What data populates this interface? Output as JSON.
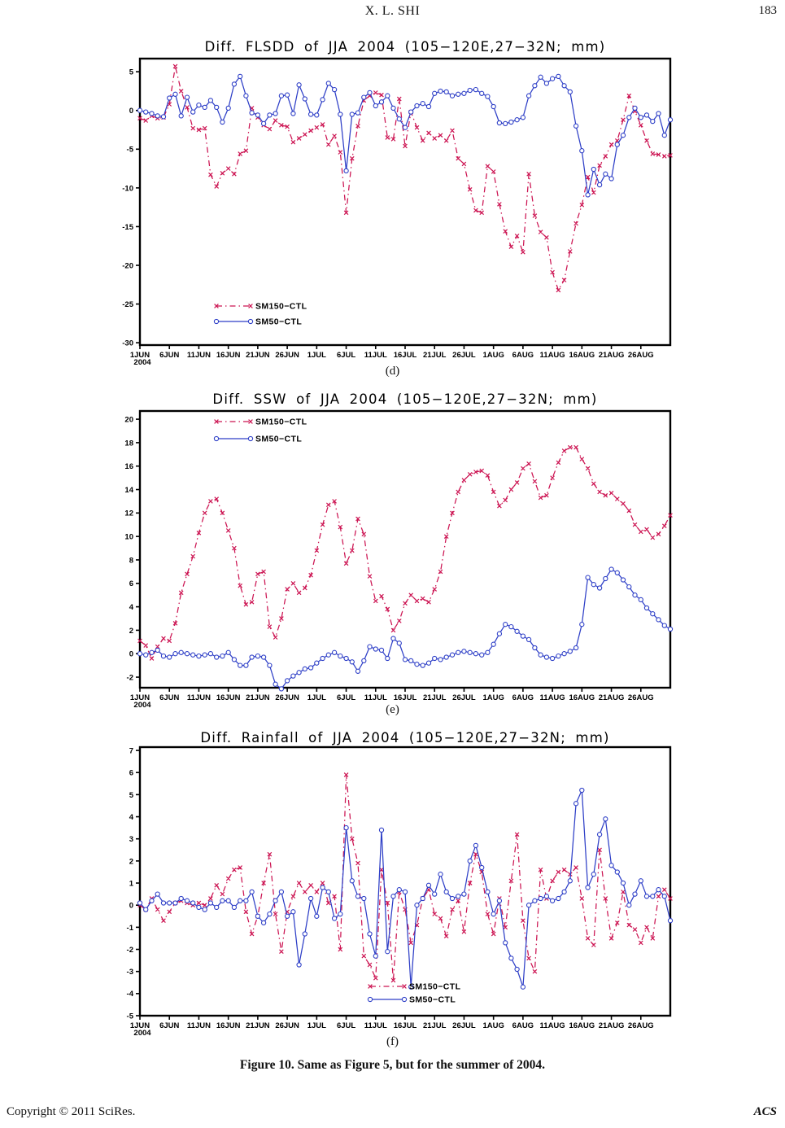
{
  "header": {
    "title": "X. L. SHI",
    "page_number": "183"
  },
  "caption": {
    "text": "Figure 10. Same as Figure 5, but for the summer of 2004."
  },
  "footer": {
    "left": "Copyright © 2011 SciRes.",
    "right": "ACS"
  },
  "accent_colors": {
    "sm150": "#cc1452",
    "sm50": "#2e3fc7",
    "axis": "#000000"
  },
  "chart_data": [
    {
      "type": "line",
      "panel_label": "(d)",
      "title": "Diff. FLSDD of JJA 2004 (105−120E,27−32N; mm)",
      "xlabel": "",
      "ylabel": "",
      "x_axis_year": "2004",
      "x_ticks": [
        "1JUN",
        "6JUN",
        "11JUN",
        "16JUN",
        "21JUN",
        "26JUN",
        "1JUL",
        "6JUL",
        "11JUL",
        "16JUL",
        "21JUL",
        "26JUL",
        "1AUG",
        "6AUG",
        "11AUG",
        "16AUG",
        "21AUG",
        "26AUG"
      ],
      "y_ticks": [
        5,
        0,
        -5,
        -10,
        -15,
        -20,
        -25,
        -30
      ],
      "ylim": [
        -30.3,
        6.7
      ],
      "n_days": 91,
      "legend_position": "inside-lower-left",
      "series": [
        {
          "name": "SM150−CTL",
          "color": "#cc1452",
          "marker": "x",
          "line": "dashdot",
          "values": [
            -1.0,
            -1.3,
            -0.7,
            -1.0,
            -0.9,
            0.8,
            5.7,
            2.5,
            0.4,
            -2.3,
            -2.5,
            -2.3,
            -8.3,
            -9.8,
            -8.1,
            -7.5,
            -8.2,
            -5.6,
            -5.2,
            0.3,
            -0.9,
            -1.9,
            -2.4,
            -1.3,
            -1.9,
            -2.1,
            -4.1,
            -3.6,
            -3.1,
            -2.6,
            -2.2,
            -1.8,
            -4.4,
            -3.3,
            -5.4,
            -13.2,
            -6.2,
            -2.0,
            1.3,
            1.9,
            2.3,
            2.0,
            -3.5,
            -3.7,
            1.5,
            -4.6,
            -0.2,
            -2.2,
            -3.9,
            -2.9,
            -3.6,
            -3.2,
            -3.9,
            -2.6,
            -6.2,
            -6.9,
            -10.2,
            -12.9,
            -13.2,
            -7.2,
            -7.9,
            -12.1,
            -15.6,
            -17.6,
            -16.2,
            -18.3,
            -8.2,
            -13.6,
            -15.7,
            -16.4,
            -20.9,
            -23.2,
            -21.9,
            -18.2,
            -14.6,
            -12.2,
            -8.6,
            -10.6,
            -7.1,
            -5.9,
            -4.4,
            -3.9,
            -1.2,
            1.9,
            -0.1,
            -1.9,
            -3.9,
            -5.6,
            -5.7,
            -5.9,
            -5.8
          ]
        },
        {
          "name": "SM50−CTL",
          "color": "#2e3fc7",
          "marker": "circle",
          "line": "solid",
          "values": [
            0.0,
            -0.2,
            -0.4,
            -0.7,
            -0.8,
            1.6,
            2.1,
            -0.7,
            1.7,
            -0.2,
            0.7,
            0.4,
            1.3,
            0.4,
            -1.5,
            0.3,
            3.4,
            4.4,
            1.9,
            -0.3,
            -0.6,
            -1.7,
            -0.6,
            -0.4,
            1.9,
            2.0,
            -0.4,
            3.3,
            1.5,
            -0.5,
            -0.6,
            1.4,
            3.5,
            2.7,
            -0.5,
            -7.8,
            -0.5,
            -0.3,
            1.7,
            2.3,
            0.6,
            1.1,
            1.9,
            0.3,
            -1.1,
            -2.2,
            -0.2,
            0.6,
            0.9,
            0.5,
            2.2,
            2.5,
            2.4,
            1.9,
            2.1,
            2.2,
            2.6,
            2.7,
            2.2,
            1.8,
            0.5,
            -1.6,
            -1.7,
            -1.5,
            -1.2,
            -0.9,
            1.9,
            3.2,
            4.3,
            3.5,
            4.1,
            4.4,
            3.2,
            2.4,
            -2.0,
            -5.2,
            -10.9,
            -7.6,
            -9.6,
            -8.2,
            -8.8,
            -4.4,
            -3.2,
            -0.9,
            0.3,
            -0.9,
            -0.6,
            -1.4,
            -0.4,
            -3.2,
            -1.2
          ]
        }
      ]
    },
    {
      "type": "line",
      "panel_label": "(e)",
      "title": "Diff. SSW of JJA 2004 (105−120E,27−32N; mm)",
      "xlabel": "",
      "ylabel": "",
      "x_axis_year": "2004",
      "x_ticks": [
        "1JUN",
        "6JUN",
        "11JUN",
        "16JUN",
        "21JUN",
        "26JUN",
        "1JUL",
        "6JUL",
        "11JUL",
        "16JUL",
        "21JUL",
        "26JUL",
        "1AUG",
        "6AUG",
        "11AUG",
        "16AUG",
        "21AUG",
        "26AUG"
      ],
      "y_ticks": [
        20,
        18,
        16,
        14,
        12,
        10,
        8,
        6,
        4,
        2,
        0,
        -2
      ],
      "ylim": [
        -2.9,
        20.7
      ],
      "n_days": 91,
      "legend_position": "inside-upper-left",
      "series": [
        {
          "name": "SM150−CTL",
          "color": "#cc1452",
          "marker": "x",
          "line": "dashdot",
          "values": [
            1.1,
            0.7,
            -0.4,
            0.6,
            1.3,
            1.1,
            2.6,
            5.2,
            6.8,
            8.3,
            10.3,
            12.0,
            13.0,
            13.2,
            12.0,
            10.5,
            9.0,
            5.8,
            4.2,
            4.4,
            6.8,
            7.0,
            2.3,
            1.4,
            3.0,
            5.5,
            6.0,
            5.2,
            5.6,
            6.7,
            8.8,
            11.0,
            12.7,
            13.0,
            10.8,
            7.7,
            8.8,
            11.5,
            10.2,
            6.6,
            4.5,
            4.9,
            3.8,
            2.0,
            2.8,
            4.3,
            5.0,
            4.5,
            4.7,
            4.4,
            5.5,
            7.0,
            10.0,
            12.0,
            13.8,
            14.8,
            15.3,
            15.5,
            15.6,
            15.2,
            13.8,
            12.6,
            13.1,
            14.0,
            14.6,
            15.8,
            16.2,
            14.7,
            13.3,
            13.5,
            15.0,
            16.3,
            17.3,
            17.6,
            17.6,
            16.6,
            15.8,
            14.5,
            13.8,
            13.5,
            13.7,
            13.2,
            12.8,
            12.2,
            11.0,
            10.4,
            10.6,
            9.9,
            10.2,
            10.9,
            11.8
          ]
        },
        {
          "name": "SM50−CTL",
          "color": "#2e3fc7",
          "marker": "circle",
          "line": "solid",
          "values": [
            0.0,
            -0.1,
            0.1,
            0.3,
            -0.2,
            -0.3,
            0.0,
            0.1,
            0.0,
            -0.1,
            -0.2,
            -0.1,
            0.0,
            -0.3,
            -0.2,
            0.1,
            -0.5,
            -1.0,
            -1.0,
            -0.3,
            -0.2,
            -0.3,
            -1.0,
            -2.6,
            -3.0,
            -2.3,
            -1.9,
            -1.6,
            -1.3,
            -1.2,
            -0.8,
            -0.4,
            -0.1,
            0.1,
            -0.2,
            -0.4,
            -0.7,
            -1.5,
            -0.6,
            0.6,
            0.4,
            0.3,
            -0.4,
            1.3,
            0.9,
            -0.5,
            -0.6,
            -0.9,
            -1.0,
            -0.8,
            -0.4,
            -0.5,
            -0.3,
            -0.1,
            0.1,
            0.2,
            0.1,
            0.0,
            -0.1,
            0.1,
            0.8,
            1.7,
            2.5,
            2.3,
            1.9,
            1.5,
            1.2,
            0.5,
            -0.1,
            -0.3,
            -0.4,
            -0.2,
            0.0,
            0.2,
            0.5,
            2.5,
            6.5,
            5.9,
            5.6,
            6.4,
            7.2,
            6.9,
            6.3,
            5.7,
            5.0,
            4.6,
            3.9,
            3.4,
            2.9,
            2.4,
            2.1
          ]
        }
      ]
    },
    {
      "type": "line",
      "panel_label": "(f)",
      "title": "Diff. Rainfall of JJA 2004 (105−120E,27−32N; mm)",
      "xlabel": "",
      "ylabel": "",
      "x_axis_year": "2004",
      "x_ticks": [
        "1JUN",
        "6JUN",
        "11JUN",
        "16JUN",
        "21JUN",
        "26JUN",
        "1JUL",
        "6JUL",
        "11JUL",
        "16JUL",
        "21JUL",
        "26JUL",
        "1AUG",
        "6AUG",
        "11AUG",
        "16AUG",
        "21AUG",
        "26AUG"
      ],
      "y_ticks": [
        7,
        6,
        5,
        4,
        3,
        2,
        1,
        0,
        -1,
        -2,
        -3,
        -4,
        -5
      ],
      "ylim": [
        -5.0,
        7.15
      ],
      "n_days": 91,
      "legend_position": "inside-lower-middle",
      "series": [
        {
          "name": "SM150−CTL",
          "color": "#cc1452",
          "marker": "x",
          "line": "dashdot",
          "values": [
            0.0,
            -0.2,
            0.3,
            -0.2,
            -0.7,
            -0.3,
            0.1,
            0.2,
            0.1,
            0.0,
            0.1,
            0.0,
            0.3,
            0.9,
            0.5,
            1.2,
            1.6,
            1.7,
            -0.3,
            -1.3,
            -0.5,
            1.0,
            2.3,
            -0.4,
            -2.1,
            -0.3,
            0.4,
            1.0,
            0.6,
            0.9,
            0.6,
            1.0,
            0.1,
            0.4,
            -2.0,
            5.9,
            3.0,
            1.9,
            -2.3,
            -2.7,
            -3.3,
            1.6,
            0.1,
            -3.4,
            0.6,
            -0.2,
            -1.7,
            -0.9,
            0.3,
            0.7,
            -0.4,
            -0.6,
            -1.4,
            -0.2,
            0.2,
            -1.2,
            1.0,
            2.3,
            1.5,
            -0.4,
            -1.3,
            0.3,
            -1.0,
            1.1,
            3.2,
            -0.7,
            -2.4,
            -3.0,
            1.6,
            0.3,
            1.1,
            1.5,
            1.6,
            1.4,
            1.7,
            0.3,
            -1.5,
            -1.8,
            2.5,
            0.3,
            -1.5,
            -0.8,
            0.6,
            -0.9,
            -1.1,
            -1.7,
            -1.0,
            -1.5,
            0.4,
            0.7,
            0.3
          ]
        },
        {
          "name": "SM50−CTL",
          "color": "#2e3fc7",
          "marker": "circle",
          "line": "solid",
          "values": [
            0.1,
            -0.2,
            0.2,
            0.5,
            0.1,
            0.1,
            0.1,
            0.3,
            0.2,
            0.1,
            -0.1,
            -0.2,
            0.1,
            -0.1,
            0.2,
            0.2,
            -0.1,
            0.2,
            0.2,
            0.6,
            -0.5,
            -0.8,
            -0.4,
            0.2,
            0.6,
            -0.5,
            -0.3,
            -2.7,
            -1.3,
            0.3,
            -0.5,
            0.8,
            0.6,
            -0.6,
            -0.4,
            3.5,
            1.1,
            0.4,
            0.3,
            -1.3,
            -2.3,
            3.4,
            -2.1,
            0.4,
            0.7,
            0.6,
            -3.7,
            0.0,
            0.3,
            0.9,
            0.5,
            1.4,
            0.6,
            0.3,
            0.4,
            0.5,
            2.0,
            2.7,
            1.7,
            0.6,
            -0.4,
            0.2,
            -1.7,
            -2.4,
            -2.9,
            -3.7,
            0.0,
            0.2,
            0.3,
            0.4,
            0.2,
            0.3,
            0.6,
            1.1,
            4.6,
            5.2,
            0.8,
            1.4,
            3.2,
            3.9,
            1.8,
            1.5,
            1.0,
            0.0,
            0.5,
            1.1,
            0.4,
            0.4,
            0.7,
            0.4,
            -0.7
          ]
        }
      ]
    }
  ]
}
